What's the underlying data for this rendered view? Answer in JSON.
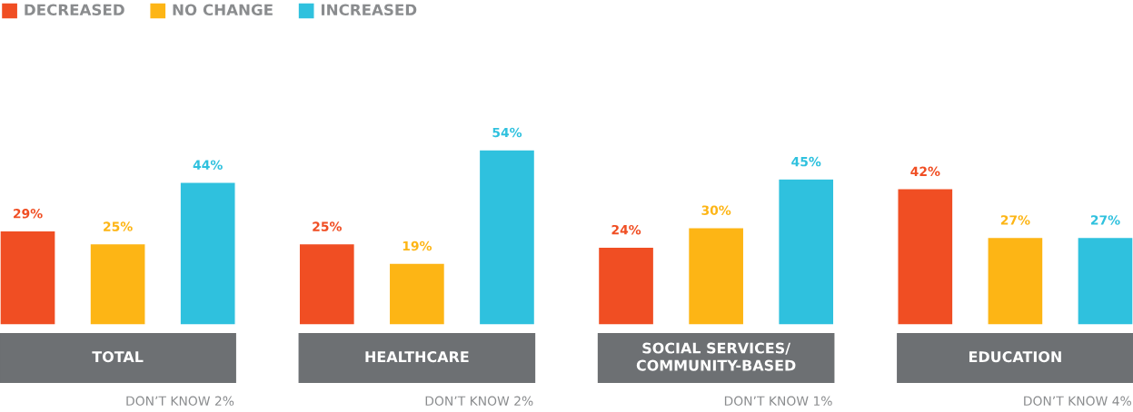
{
  "chart_data": {
    "type": "bar",
    "categories": [
      "TOTAL",
      "HEALTHCARE",
      "SOCIAL SERVICES/\nCOMMUNITY-BASED",
      "EDUCATION"
    ],
    "series": [
      {
        "name": "DECREASED",
        "color": "#f04e23",
        "values": [
          29,
          25,
          24,
          42
        ],
        "value_labels": [
          "29%",
          "25%",
          "24%",
          "42%"
        ]
      },
      {
        "name": "NO CHANGE",
        "color": "#fdb515",
        "values": [
          25,
          19,
          30,
          27
        ],
        "value_labels": [
          "25%",
          "19%",
          "30%",
          "27%"
        ]
      },
      {
        "name": "INCREASED",
        "color": "#2fc1de",
        "values": [
          44,
          54,
          45,
          27
        ],
        "value_labels": [
          "44%",
          "54%",
          "45%",
          "27%"
        ]
      }
    ],
    "annotations": [
      "DON’T KNOW 2%",
      "DON’T KNOW 2%",
      "DON’T KNOW 1%",
      "DON’T KNOW 4%"
    ],
    "legend": "top left"
  }
}
